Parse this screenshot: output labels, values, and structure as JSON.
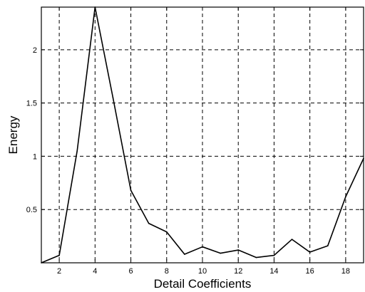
{
  "chart_data": {
    "type": "line",
    "xlabel": "Detail Coefficients",
    "ylabel": "Energy",
    "xlim": [
      1,
      19
    ],
    "ylim": [
      0,
      2.4
    ],
    "grid": true,
    "x_ticks": [
      2,
      4,
      6,
      8,
      10,
      12,
      14,
      16,
      18
    ],
    "x_tick_labels": [
      "2",
      "4",
      "6",
      "8",
      "10",
      "12",
      "14",
      "16",
      "18"
    ],
    "y_ticks": [
      0.5,
      1,
      1.5,
      2
    ],
    "y_tick_labels": [
      "0.5",
      "1",
      "1.5",
      "2"
    ],
    "x": [
      1,
      2,
      3,
      4,
      5,
      6,
      7,
      8,
      9,
      10,
      11,
      12,
      13,
      14,
      15,
      16,
      17,
      18,
      19
    ],
    "series": [
      {
        "values": [
          0.0,
          0.07,
          1.05,
          2.4,
          1.55,
          0.68,
          0.37,
          0.29,
          0.08,
          0.15,
          0.09,
          0.12,
          0.05,
          0.07,
          0.22,
          0.1,
          0.16,
          0.62,
          0.98
        ]
      }
    ],
    "colors": {
      "line": "#000000",
      "grid": "#000000",
      "background": "#ffffff"
    }
  }
}
